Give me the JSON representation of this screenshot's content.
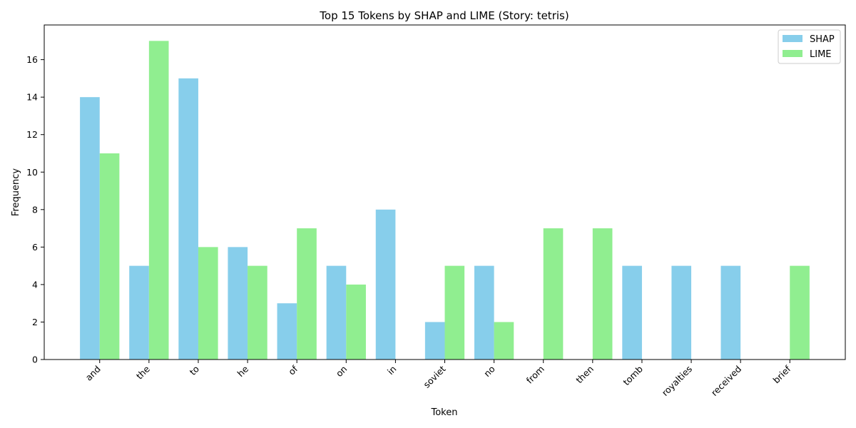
{
  "chart_data": {
    "type": "bar",
    "title": "Top 15 Tokens by SHAP and LIME (Story: tetris)",
    "xlabel": "Token",
    "ylabel": "Frequency",
    "categories": [
      "and",
      "the",
      "to",
      "he",
      "of",
      "on",
      "in",
      "soviet",
      "no",
      "from",
      "then",
      "tomb",
      "royalties",
      "received",
      "brief"
    ],
    "series": [
      {
        "name": "SHAP",
        "color": "#87ceeb",
        "values": [
          14,
          5,
          15,
          6,
          3,
          5,
          8,
          2,
          5,
          0,
          0,
          5,
          5,
          5,
          0
        ]
      },
      {
        "name": "LIME",
        "color": "#90ee90",
        "values": [
          11,
          17,
          6,
          5,
          7,
          4,
          0,
          5,
          2,
          7,
          7,
          0,
          0,
          0,
          5
        ]
      }
    ],
    "ylim": [
      0,
      17.85
    ],
    "yticks": [
      0,
      2,
      4,
      6,
      8,
      10,
      12,
      14,
      16
    ],
    "legend": "top-right",
    "grid": false
  }
}
